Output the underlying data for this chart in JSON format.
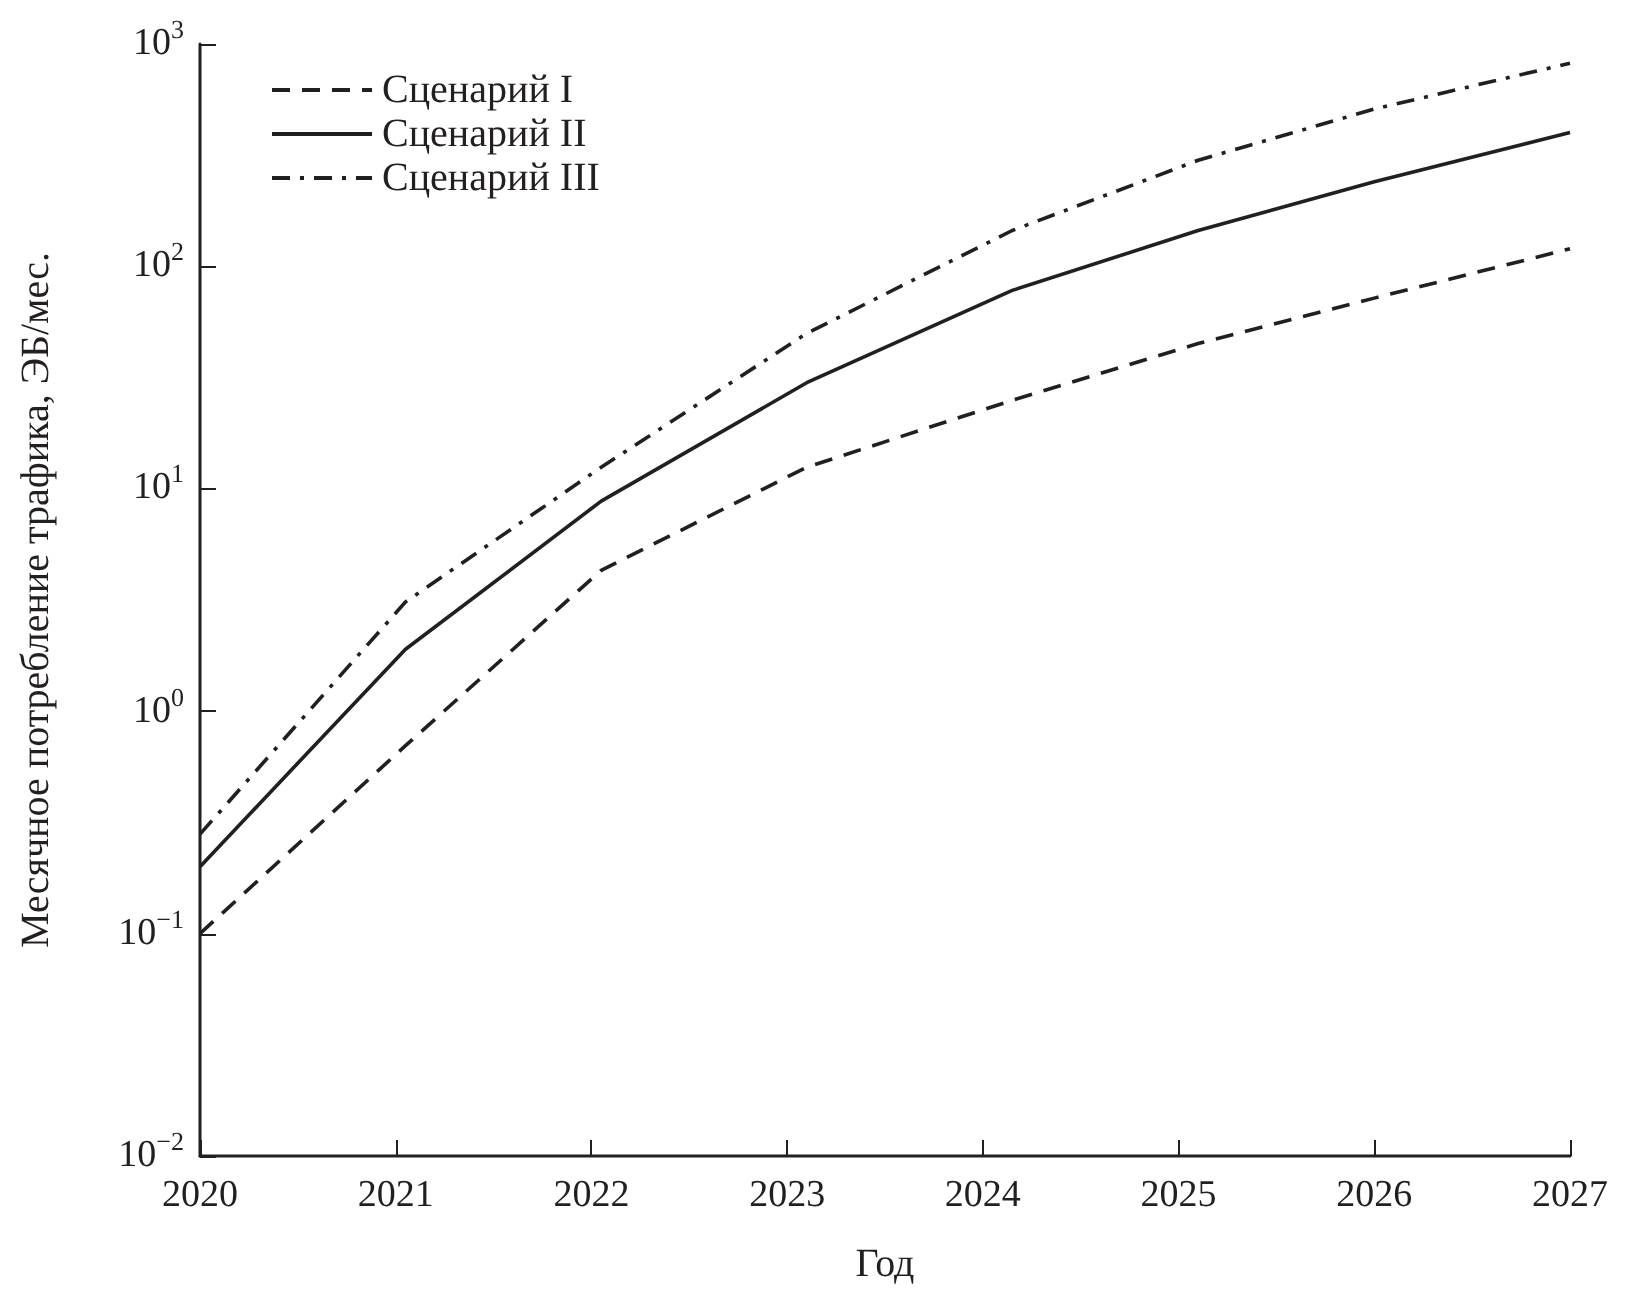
{
  "chart_data": {
    "type": "line",
    "xlabel": "Год",
    "ylabel": "Месячное потребление трафика, ЭБ/мес.",
    "log": "y",
    "grid": false,
    "legend": "top left",
    "marker": "none",
    "xlim": [
      2020,
      2027
    ],
    "xticks": [
      2020,
      2021,
      2022,
      2023,
      2024,
      2025,
      2026,
      2027
    ],
    "ylim": [
      0.01,
      1000
    ],
    "yticks": [
      {
        "value": 0.01,
        "label": "10$^{−2}$"
      },
      {
        "value": 0.1,
        "label": "10$^{−1}$"
      },
      {
        "value": 1,
        "label": "10$^{0}$"
      },
      {
        "value": 10,
        "label": "10$^{1}$"
      },
      {
        "value": 100,
        "label": "10$^{2}$"
      },
      {
        "value": 1000,
        "label": "10$^{3}$"
      }
    ],
    "series": [
      {
        "name": "Сценарий I",
        "color": "#231f20",
        "line_style": "dashed",
        "x": [
          2020,
          2021.05,
          2022.05,
          2023.1,
          2024.15,
          2025.1,
          2026,
          2027
        ],
        "values": [
          0.1,
          0.7,
          4.3,
          12.5,
          25,
          45,
          72,
          120
        ]
      },
      {
        "name": "Сценарий II",
        "color": "#231f20",
        "line_style": "solid",
        "x": [
          2020,
          2021.05,
          2022.05,
          2023.1,
          2024.15,
          2025.1,
          2026,
          2027
        ],
        "values": [
          0.2,
          1.9,
          8.8,
          30,
          78,
          145,
          240,
          400
        ]
      },
      {
        "name": "Сценарий III",
        "color": "#231f20",
        "line_style": "dashdot",
        "x": [
          2020,
          2021.05,
          2022.05,
          2023.1,
          2024.15,
          2025.1,
          2026,
          2027
        ],
        "values": [
          0.28,
          3.1,
          12.5,
          50,
          145,
          300,
          510,
          820
        ]
      }
    ]
  }
}
